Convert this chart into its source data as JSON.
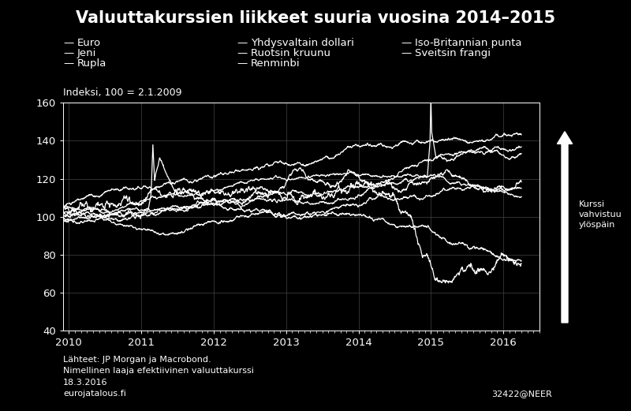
{
  "title": "Valuuttakurssien liikkeet suuria vuosina 2014–2015",
  "ylabel": "Indeksi, 100 = 2.1.2009",
  "ylim": [
    40,
    160
  ],
  "xlim": [
    2009.92,
    2016.5
  ],
  "yticks": [
    40,
    60,
    80,
    100,
    120,
    140,
    160
  ],
  "xtick_positions": [
    2010,
    2011,
    2012,
    2013,
    2014,
    2015,
    2016
  ],
  "xtick_labels": [
    "2010",
    "2011",
    "2012",
    "2013",
    "2014",
    "2015",
    "2016"
  ],
  "background_color": "#000000",
  "text_color": "#ffffff",
  "grid_color": "#444444",
  "line_color": "#ffffff",
  "legend_entries": [
    "Euro",
    "Yhdysvaltain dollari",
    "Iso-Britannian punta",
    "Jeni",
    "Ruotsin kruunu",
    "Sveitsin frangi",
    "Rupla",
    "Renminbi"
  ],
  "footnote1": "Lähteet: JP Morgan ja Macrobond.",
  "footnote2": "Nimellinen laaja efektiivinen valuuttakurssi",
  "footnote3": "18.3.2016",
  "footnote4": "eurojatalous.fi",
  "footnote5": "32422@NEER",
  "arrow_label": "Kurssi\nvahvistuu\nylöspäin",
  "title_fontsize": 15,
  "label_fontsize": 9.5,
  "footnote_fontsize": 8
}
